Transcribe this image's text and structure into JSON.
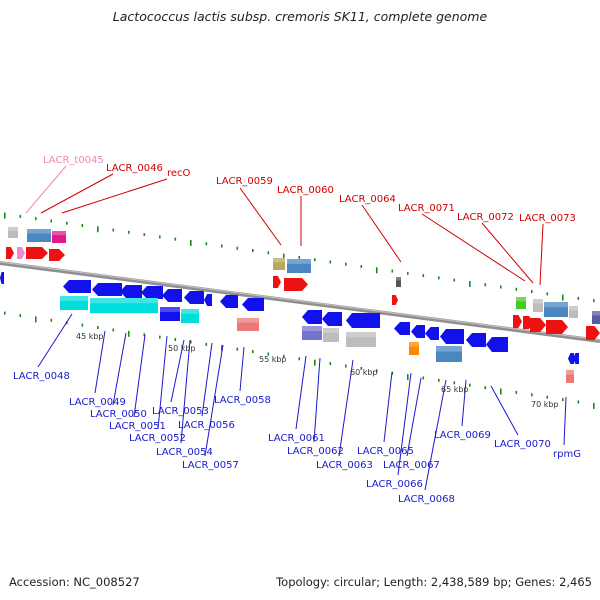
{
  "title": "Lactococcus lactis subsp. cremoris SK11, complete genome",
  "footer": {
    "accession": "Accession: NC_008527",
    "summary": "Topology: circular; Length: 2,438,589 bp; Genes: 2,465"
  },
  "colors": {
    "top_label": "#d00000",
    "trna_label": "#ee88bb",
    "bottom_label": "#1a1acc",
    "backbone": "#8f8f8f",
    "tick_green": "#1a8a1a"
  },
  "ticks": [
    {
      "label": "45 kbp"
    },
    {
      "label": "50 kbp"
    },
    {
      "label": "55 kbp"
    },
    {
      "label": "60 kbp"
    },
    {
      "label": "65 kbp"
    },
    {
      "label": "70 kbp"
    }
  ],
  "top_labels": [
    {
      "text": "LACR_t0045",
      "kind": "trna"
    },
    {
      "text": "LACR_0046",
      "kind": "gene"
    },
    {
      "text": "recO",
      "kind": "gene"
    },
    {
      "text": "LACR_0059",
      "kind": "gene"
    },
    {
      "text": "LACR_0060",
      "kind": "gene"
    },
    {
      "text": "LACR_0064",
      "kind": "gene"
    },
    {
      "text": "LACR_0071",
      "kind": "gene"
    },
    {
      "text": "LACR_0072",
      "kind": "gene"
    },
    {
      "text": "LACR_0073",
      "kind": "gene"
    }
  ],
  "bottom_labels": [
    {
      "text": "LACR_0048"
    },
    {
      "text": "LACR_0049"
    },
    {
      "text": "LACR_0050"
    },
    {
      "text": "LACR_0051"
    },
    {
      "text": "LACR_0052"
    },
    {
      "text": "LACR_0053"
    },
    {
      "text": "LACR_0054"
    },
    {
      "text": "LACR_0056"
    },
    {
      "text": "LACR_0057"
    },
    {
      "text": "LACR_0058"
    },
    {
      "text": "LACR_0061"
    },
    {
      "text": "LACR_0062"
    },
    {
      "text": "LACR_0063"
    },
    {
      "text": "LACR_0065"
    },
    {
      "text": "LACR_0066"
    },
    {
      "text": "LACR_0067"
    },
    {
      "text": "LACR_0068"
    },
    {
      "text": "LACR_0069"
    },
    {
      "text": "LACR_0070"
    },
    {
      "text": "rpmG"
    }
  ]
}
